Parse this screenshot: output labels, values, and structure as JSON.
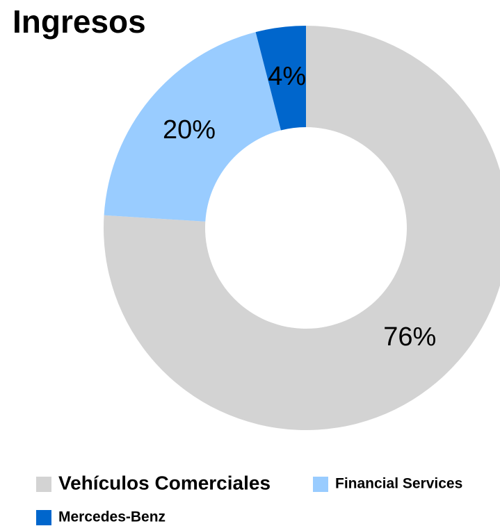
{
  "chart_data": {
    "type": "donut",
    "title": "Ingresos",
    "categories": [
      "Vehículos Comerciales",
      "Financial Services",
      "Mercedes-Benz"
    ],
    "values": [
      76,
      20,
      4
    ],
    "value_labels": [
      "76%",
      "20%",
      "4%"
    ],
    "colors": [
      "#d3d3d3",
      "#99ccff",
      "#0066cc"
    ]
  }
}
